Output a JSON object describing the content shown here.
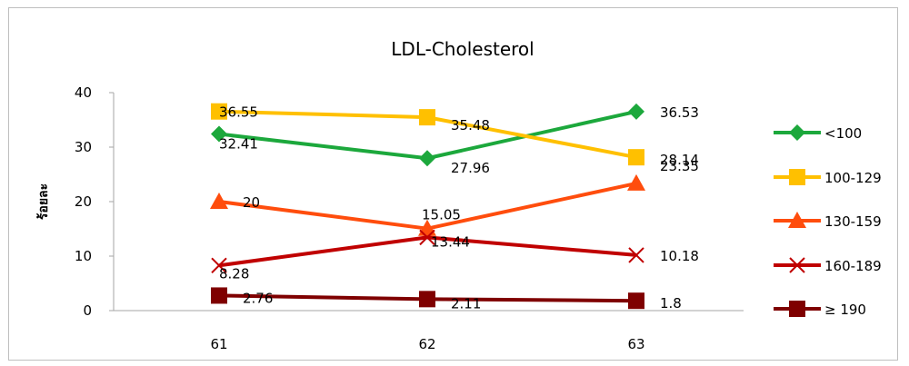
{
  "chart_data": {
    "type": "line",
    "title": "LDL-Cholesterol",
    "xlabel": "",
    "ylabel": "ร้อยละ",
    "categories": [
      "61",
      "62",
      "63"
    ],
    "ylim": [
      0,
      40
    ],
    "yticks": [
      "0",
      "10",
      "20",
      "30",
      "40"
    ],
    "grid": false,
    "legend_position": "right",
    "series": [
      {
        "name": "<100",
        "values": [
          32.41,
          27.96,
          36.53
        ],
        "labels": [
          "32.41",
          "27.96",
          "36.53"
        ],
        "color": "#1ca83c",
        "marker": "diamond"
      },
      {
        "name": "100-129",
        "values": [
          36.55,
          35.48,
          28.14
        ],
        "labels": [
          "36.55",
          "35.48",
          "28.14"
        ],
        "color": "#ffc000",
        "marker": "square"
      },
      {
        "name": "130-159",
        "values": [
          20,
          15.05,
          23.35
        ],
        "labels": [
          "20",
          "15.05",
          "23.35"
        ],
        "color": "#ff4d0d",
        "marker": "triangle"
      },
      {
        "name": "160-189",
        "values": [
          8.28,
          13.44,
          10.18
        ],
        "labels": [
          "8.28",
          "13.44",
          "10.18"
        ],
        "color": "#c00000",
        "marker": "x"
      },
      {
        "name": "≥ 190",
        "values": [
          2.76,
          2.11,
          1.8
        ],
        "labels": [
          "2.76",
          "2.11",
          "1.8"
        ],
        "color": "#7f0000",
        "marker": "square"
      }
    ]
  }
}
